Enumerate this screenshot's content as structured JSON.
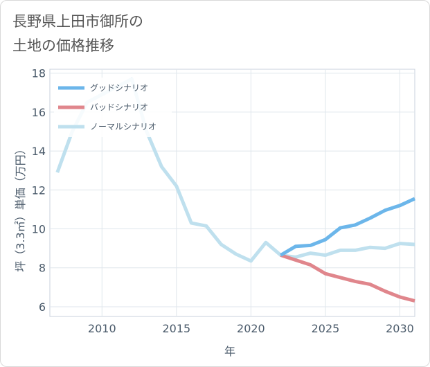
{
  "title_lines": [
    "長野県上田市御所の",
    "土地の価格推移"
  ],
  "chart_data": {
    "type": "line",
    "xlabel": "年",
    "ylabel": "坪（3.3㎡）単価（万円）",
    "xlim": [
      2006.5,
      2031
    ],
    "ylim": [
      5.5,
      18.2
    ],
    "x_ticks": [
      2010,
      2015,
      2020,
      2025,
      2030
    ],
    "y_ticks": [
      6,
      8,
      10,
      12,
      14,
      16,
      18
    ],
    "grid": true,
    "legend_position": "top-left",
    "series": [
      {
        "name": "グッドシナリオ",
        "color": "#6cb6ea",
        "x": [
          2022,
          2023,
          2024,
          2025,
          2026,
          2027,
          2028,
          2029,
          2030,
          2031
        ],
        "y": [
          8.65,
          9.1,
          9.15,
          9.45,
          10.05,
          10.2,
          10.55,
          10.95,
          11.2,
          11.55
        ]
      },
      {
        "name": "バッドシナリオ",
        "color": "#e0868c",
        "x": [
          2022,
          2023,
          2024,
          2025,
          2026,
          2027,
          2028,
          2029,
          2030,
          2031
        ],
        "y": [
          8.65,
          8.4,
          8.15,
          7.7,
          7.5,
          7.3,
          7.15,
          6.8,
          6.5,
          6.3
        ]
      },
      {
        "name": "ノーマルシナリオ",
        "color": "#bfe0ee",
        "x": [
          2007,
          2008,
          2009,
          2010,
          2011,
          2012,
          2013,
          2014,
          2015,
          2016,
          2017,
          2018,
          2019,
          2020,
          2021,
          2022,
          2023,
          2024,
          2025,
          2026,
          2027,
          2028,
          2029,
          2030,
          2031
        ],
        "y": [
          12.9,
          15.0,
          16.5,
          16.9,
          17.3,
          17.7,
          15.0,
          13.2,
          12.2,
          10.3,
          10.15,
          9.2,
          8.7,
          8.35,
          9.3,
          8.65,
          8.55,
          8.75,
          8.65,
          8.9,
          8.9,
          9.05,
          9.0,
          9.25,
          9.2
        ]
      }
    ]
  }
}
